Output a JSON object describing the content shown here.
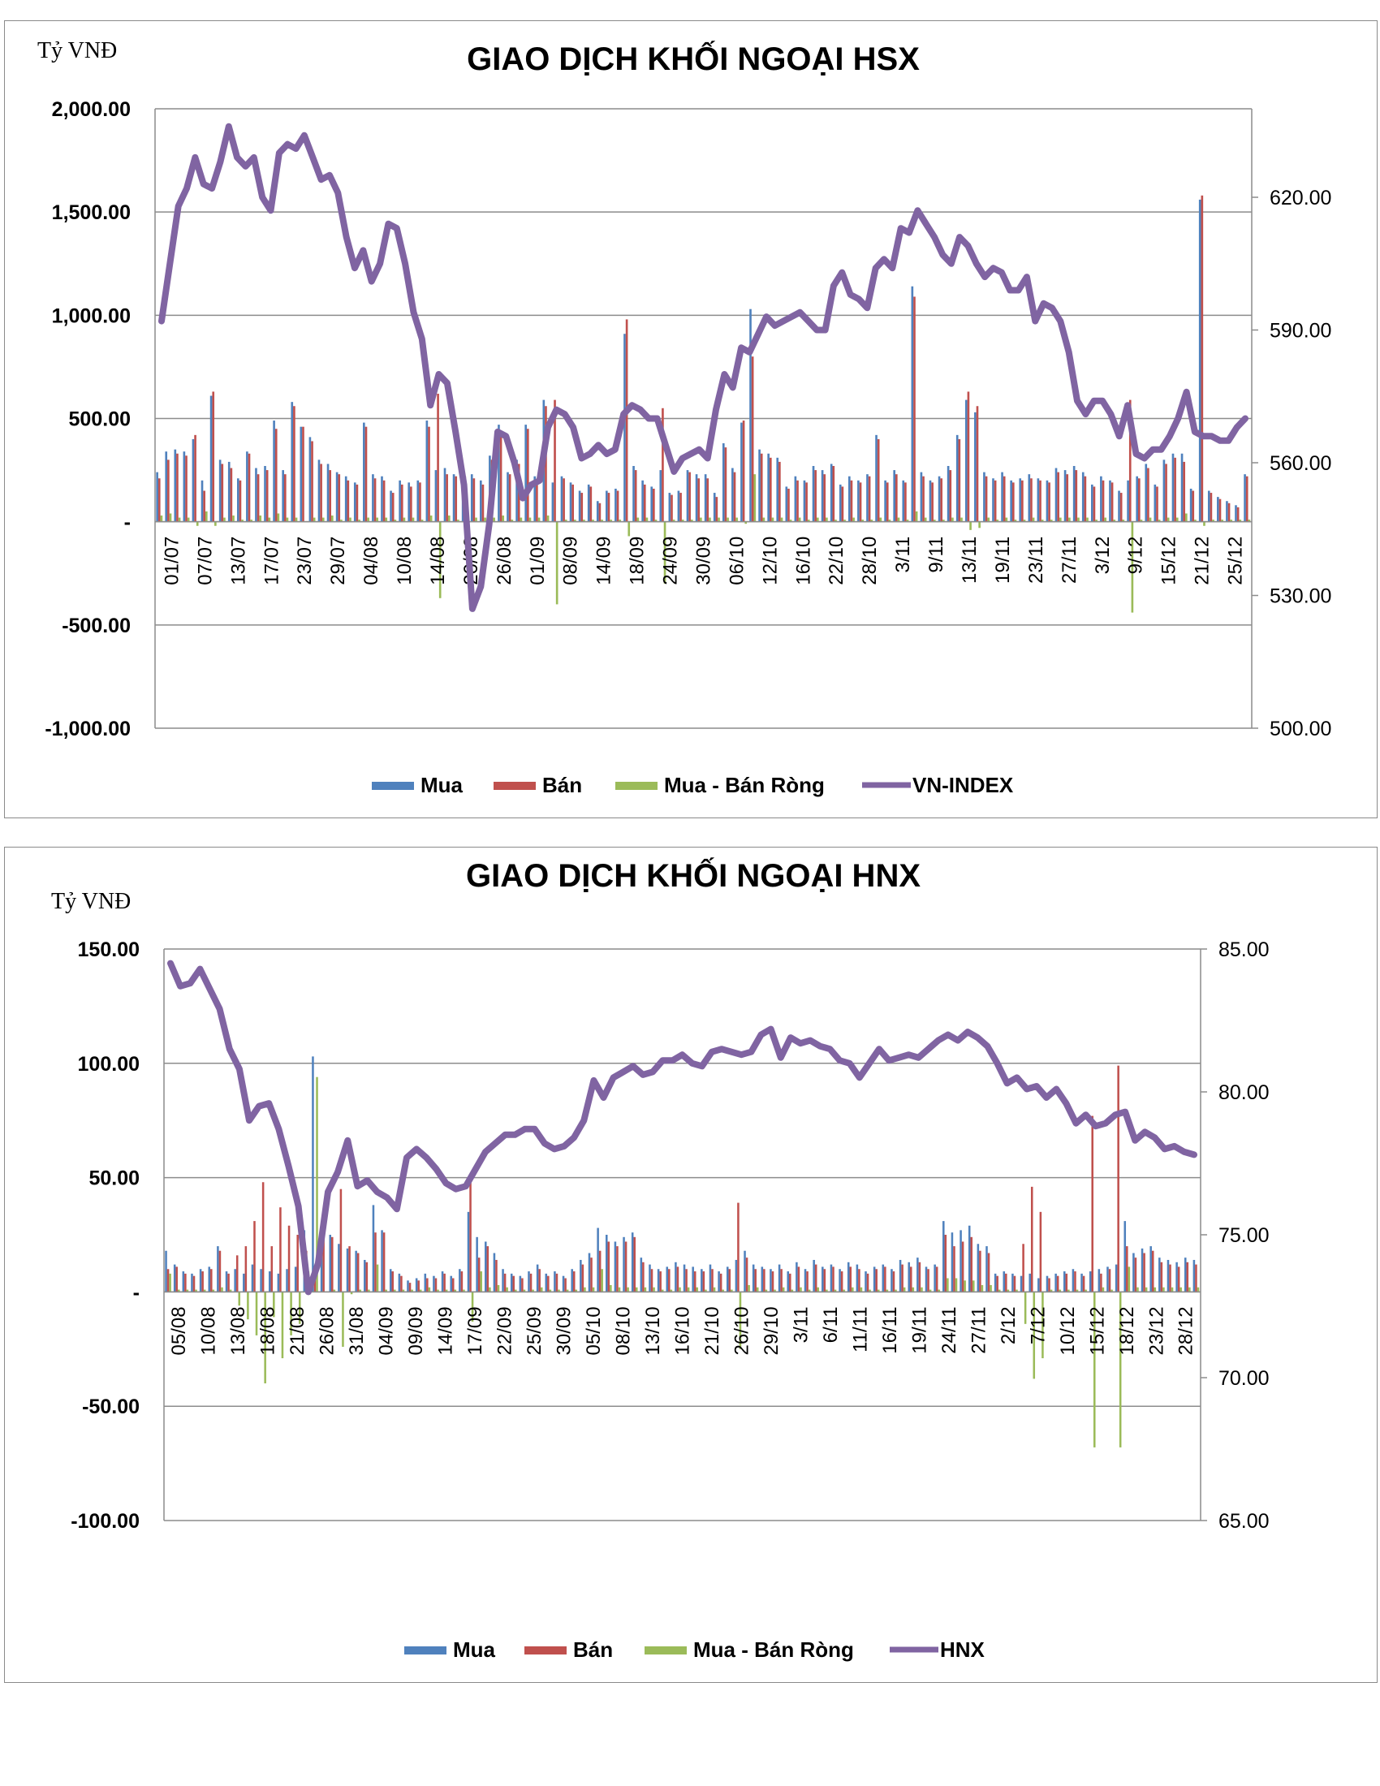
{
  "chart_data": [
    {
      "type": "bar",
      "title": "GIAO DỊCH KHỐI NGOẠI HSX",
      "ylabel": "Tỷ VNĐ",
      "ylim": [
        -1000,
        2000
      ],
      "y_ticks": [
        "2,000.00",
        "1,500.00",
        "1,000.00",
        "500.00",
        "-",
        "-500.00",
        "-1,000.00"
      ],
      "y2lim": [
        500,
        640
      ],
      "y2_ticks": [
        "620.00",
        "590.00",
        "560.00",
        "530.00",
        "500.00"
      ],
      "x_ticks": [
        "01/07",
        "07/07",
        "13/07",
        "17/07",
        "23/07",
        "29/07",
        "04/08",
        "10/08",
        "14/08",
        "20/08",
        "26/08",
        "01/09",
        "08/09",
        "14/09",
        "18/09",
        "24/09",
        "30/09",
        "06/10",
        "12/10",
        "16/10",
        "22/10",
        "28/10",
        "3/11",
        "9/11",
        "13/11",
        "19/11",
        "23/11",
        "27/11",
        "3/12",
        "9/12",
        "15/12",
        "21/12",
        "25/12"
      ],
      "grid": true,
      "legend_position": "bottom",
      "colors": {
        "Mua": "#4f81bd",
        "Bán": "#c0504d",
        "Mua - Bán Ròng": "#9bbb59",
        "line": "#8064a2"
      },
      "series": [
        {
          "name": "Mua",
          "values": [
            240,
            340,
            350,
            340,
            400,
            200,
            610,
            300,
            290,
            210,
            340,
            260,
            270,
            490,
            250,
            580,
            460,
            410,
            300,
            280,
            240,
            220,
            190,
            480,
            230,
            220,
            150,
            200,
            190,
            200,
            490,
            250,
            260,
            230,
            240,
            230,
            200,
            320,
            470,
            240,
            300,
            470,
            220,
            590,
            190,
            220,
            190,
            150,
            180,
            100,
            150,
            160,
            910,
            270,
            200,
            170,
            250,
            140,
            150,
            250,
            230,
            230,
            140,
            380,
            260,
            480,
            1030,
            350,
            330,
            310,
            170,
            220,
            200,
            270,
            250,
            280,
            180,
            220,
            200,
            230,
            420,
            200,
            250,
            200,
            1140,
            240,
            200,
            220,
            270,
            420,
            590,
            530,
            240,
            210,
            240,
            200,
            210,
            230,
            210,
            200,
            260,
            250,
            270,
            240,
            180,
            220,
            200,
            150,
            200,
            220,
            280,
            180,
            300,
            330,
            330,
            160,
            1560,
            150,
            120,
            100,
            80,
            230
          ]
        },
        {
          "name": "Bán",
          "values": [
            210,
            300,
            330,
            320,
            420,
            150,
            630,
            280,
            260,
            200,
            330,
            230,
            250,
            450,
            230,
            560,
            460,
            390,
            280,
            250,
            230,
            200,
            180,
            460,
            210,
            200,
            140,
            180,
            170,
            190,
            460,
            620,
            230,
            220,
            220,
            210,
            180,
            300,
            440,
            230,
            280,
            450,
            200,
            560,
            590,
            210,
            180,
            140,
            170,
            90,
            140,
            150,
            980,
            250,
            180,
            160,
            550,
            130,
            140,
            240,
            210,
            210,
            120,
            360,
            240,
            490,
            800,
            330,
            310,
            290,
            160,
            200,
            190,
            250,
            230,
            270,
            170,
            200,
            190,
            220,
            400,
            190,
            230,
            190,
            1090,
            220,
            190,
            210,
            250,
            400,
            630,
            560,
            220,
            200,
            220,
            190,
            200,
            210,
            200,
            190,
            240,
            230,
            250,
            220,
            170,
            200,
            190,
            140,
            590,
            210,
            260,
            170,
            280,
            310,
            290,
            150,
            1580,
            140,
            110,
            90,
            70,
            220
          ]
        },
        {
          "name": "Mua - Bán Ròng",
          "values": [
            30,
            40,
            20,
            20,
            -20,
            50,
            -20,
            20,
            30,
            10,
            10,
            30,
            20,
            40,
            20,
            20,
            0,
            20,
            20,
            30,
            10,
            20,
            10,
            20,
            20,
            20,
            10,
            20,
            20,
            10,
            30,
            -370,
            30,
            10,
            20,
            20,
            20,
            20,
            30,
            10,
            20,
            20,
            20,
            30,
            -400,
            10,
            10,
            10,
            10,
            10,
            10,
            10,
            -70,
            20,
            20,
            10,
            -300,
            10,
            10,
            10,
            20,
            20,
            20,
            20,
            20,
            -10,
            230,
            20,
            20,
            20,
            10,
            20,
            10,
            20,
            20,
            10,
            10,
            20,
            10,
            10,
            20,
            10,
            20,
            10,
            50,
            20,
            10,
            10,
            20,
            20,
            -40,
            -30,
            20,
            10,
            20,
            10,
            10,
            20,
            10,
            10,
            20,
            20,
            20,
            20,
            10,
            20,
            10,
            10,
            -440,
            10,
            20,
            10,
            20,
            20,
            40,
            10,
            -20,
            10,
            10,
            10,
            10,
            10
          ]
        },
        {
          "name": "VN-INDEX",
          "axis": "secondary",
          "values": [
            592,
            605,
            618,
            622,
            629,
            623,
            622,
            628,
            636,
            629,
            627,
            629,
            620,
            617,
            630,
            632,
            631,
            634,
            629,
            624,
            625,
            621,
            611,
            604,
            608,
            601,
            605,
            614,
            613,
            605,
            594,
            588,
            573,
            580,
            578,
            567,
            555,
            527,
            532,
            546,
            567,
            566,
            560,
            552,
            555,
            556,
            568,
            572,
            571,
            568,
            561,
            562,
            564,
            562,
            563,
            571,
            573,
            572,
            570,
            570,
            564,
            558,
            561,
            562,
            563,
            561,
            572,
            580,
            577,
            586,
            585,
            589,
            593,
            591,
            592,
            593,
            594,
            592,
            590,
            590,
            600,
            603,
            598,
            597,
            595,
            604,
            606,
            604,
            613,
            612,
            617,
            614,
            611,
            607,
            605,
            611,
            609,
            605,
            602,
            604,
            603,
            599,
            599,
            602,
            592,
            596,
            595,
            592,
            585,
            574,
            571,
            574,
            574,
            571,
            566,
            573,
            562,
            561,
            563,
            563,
            566,
            570,
            576,
            567,
            566,
            566,
            565,
            565,
            568,
            570
          ]
        }
      ]
    },
    {
      "type": "bar",
      "title": "GIAO DỊCH KHỐI NGOẠI HNX",
      "ylabel": "Tỷ VNĐ",
      "ylim": [
        -100,
        150
      ],
      "y_ticks": [
        "150.00",
        "100.00",
        "50.00",
        "-",
        "-50.00",
        "-100.00"
      ],
      "y2lim": [
        65,
        85
      ],
      "y2_ticks": [
        "85.00",
        "80.00",
        "75.00",
        "70.00",
        "65.00"
      ],
      "x_ticks": [
        "05/08",
        "10/08",
        "13/08",
        "18/08",
        "21/08",
        "26/08",
        "31/08",
        "04/09",
        "09/09",
        "14/09",
        "17/09",
        "22/09",
        "25/09",
        "30/09",
        "05/10",
        "08/10",
        "13/10",
        "16/10",
        "21/10",
        "26/10",
        "29/10",
        "3/11",
        "6/11",
        "11/11",
        "16/11",
        "19/11",
        "24/11",
        "27/11",
        "2/12",
        "7/12",
        "10/12",
        "15/12",
        "18/12",
        "23/12",
        "28/12"
      ],
      "grid": true,
      "legend_position": "bottom",
      "colors": {
        "Mua": "#4f81bd",
        "Bán": "#c0504d",
        "Mua - Bán Ròng": "#9bbb59",
        "line": "#8064a2"
      },
      "series": [
        {
          "name": "Mua",
          "values": [
            18,
            12,
            9,
            8,
            10,
            11,
            20,
            9,
            10,
            8,
            12,
            10,
            9,
            8,
            10,
            11,
            27,
            103,
            26,
            25,
            21,
            19,
            18,
            14,
            38,
            27,
            10,
            8,
            5,
            6,
            8,
            7,
            9,
            7,
            10,
            35,
            24,
            22,
            17,
            10,
            8,
            7,
            9,
            12,
            8,
            9,
            7,
            10,
            14,
            17,
            28,
            25,
            22,
            24,
            26,
            15,
            12,
            10,
            11,
            13,
            12,
            11,
            10,
            12,
            9,
            11,
            14,
            18,
            12,
            11,
            10,
            12,
            9,
            13,
            10,
            14,
            11,
            12,
            10,
            13,
            12,
            9,
            11,
            12,
            10,
            14,
            13,
            15,
            11,
            12,
            31,
            26,
            27,
            29,
            21,
            20,
            8,
            9,
            8,
            7,
            8,
            6,
            7,
            8,
            9,
            10,
            8,
            9,
            10,
            11,
            12,
            31,
            17,
            19,
            20,
            15,
            14,
            13,
            15,
            14
          ]
        },
        {
          "name": "Bán",
          "values": [
            10,
            11,
            8,
            7,
            9,
            10,
            18,
            8,
            16,
            20,
            31,
            48,
            20,
            37,
            29,
            25,
            18,
            9,
            26,
            24,
            45,
            20,
            17,
            13,
            26,
            26,
            9,
            7,
            4,
            5,
            6,
            6,
            8,
            6,
            9,
            48,
            15,
            20,
            14,
            8,
            7,
            6,
            8,
            10,
            7,
            8,
            6,
            9,
            12,
            15,
            18,
            22,
            20,
            22,
            24,
            13,
            10,
            9,
            10,
            11,
            10,
            9,
            9,
            10,
            8,
            10,
            39,
            15,
            10,
            10,
            9,
            10,
            8,
            11,
            9,
            12,
            10,
            11,
            9,
            11,
            10,
            8,
            10,
            11,
            9,
            12,
            11,
            13,
            10,
            11,
            25,
            20,
            22,
            24,
            18,
            17,
            7,
            8,
            7,
            21,
            46,
            35,
            6,
            7,
            8,
            9,
            7,
            77,
            8,
            10,
            99,
            20,
            15,
            17,
            18,
            13,
            12,
            11,
            13,
            12
          ]
        },
        {
          "name": "Mua - Bán Ròng",
          "values": [
            8,
            1,
            1,
            1,
            1,
            1,
            2,
            1,
            -6,
            -12,
            -19,
            -40,
            -11,
            -29,
            -19,
            -14,
            9,
            94,
            0,
            1,
            -24,
            -1,
            1,
            1,
            12,
            1,
            1,
            1,
            1,
            1,
            2,
            1,
            1,
            1,
            1,
            -13,
            9,
            2,
            3,
            2,
            1,
            1,
            1,
            2,
            1,
            1,
            1,
            1,
            2,
            2,
            10,
            3,
            2,
            2,
            2,
            2,
            2,
            1,
            1,
            2,
            2,
            2,
            1,
            2,
            1,
            1,
            -25,
            3,
            2,
            1,
            1,
            2,
            1,
            2,
            1,
            2,
            1,
            1,
            1,
            2,
            2,
            1,
            1,
            1,
            1,
            2,
            2,
            2,
            1,
            1,
            6,
            6,
            5,
            5,
            3,
            3,
            1,
            1,
            1,
            -14,
            -38,
            -29,
            1,
            1,
            1,
            1,
            1,
            -68,
            2,
            1,
            -68,
            11,
            2,
            2,
            2,
            2,
            2,
            2,
            2,
            2
          ]
        },
        {
          "name": "HNX",
          "axis": "secondary",
          "values": [
            84.5,
            83.7,
            83.8,
            84.3,
            83.6,
            82.9,
            81.5,
            80.8,
            79.0,
            79.5,
            79.6,
            78.7,
            77.4,
            76.0,
            73.0,
            74.0,
            76.5,
            77.2,
            78.3,
            76.7,
            76.9,
            76.5,
            76.3,
            75.9,
            77.7,
            78.0,
            77.7,
            77.3,
            76.8,
            76.6,
            76.7,
            77.3,
            77.9,
            78.2,
            78.5,
            78.5,
            78.7,
            78.7,
            78.2,
            78.0,
            78.1,
            78.4,
            79.0,
            80.4,
            79.8,
            80.5,
            80.7,
            80.9,
            80.6,
            80.7,
            81.1,
            81.1,
            81.3,
            81.0,
            80.9,
            81.4,
            81.5,
            81.4,
            81.3,
            81.4,
            82.0,
            82.2,
            81.2,
            81.9,
            81.7,
            81.8,
            81.6,
            81.5,
            81.1,
            81.0,
            80.5,
            81.0,
            81.5,
            81.1,
            81.2,
            81.3,
            81.2,
            81.5,
            81.8,
            82.0,
            81.8,
            82.1,
            81.9,
            81.6,
            81.0,
            80.3,
            80.5,
            80.1,
            80.2,
            79.8,
            80.1,
            79.6,
            78.9,
            79.2,
            78.8,
            78.9,
            79.2,
            79.3,
            78.3,
            78.6,
            78.4,
            78.0,
            78.1,
            77.9,
            77.8
          ]
        }
      ]
    }
  ]
}
